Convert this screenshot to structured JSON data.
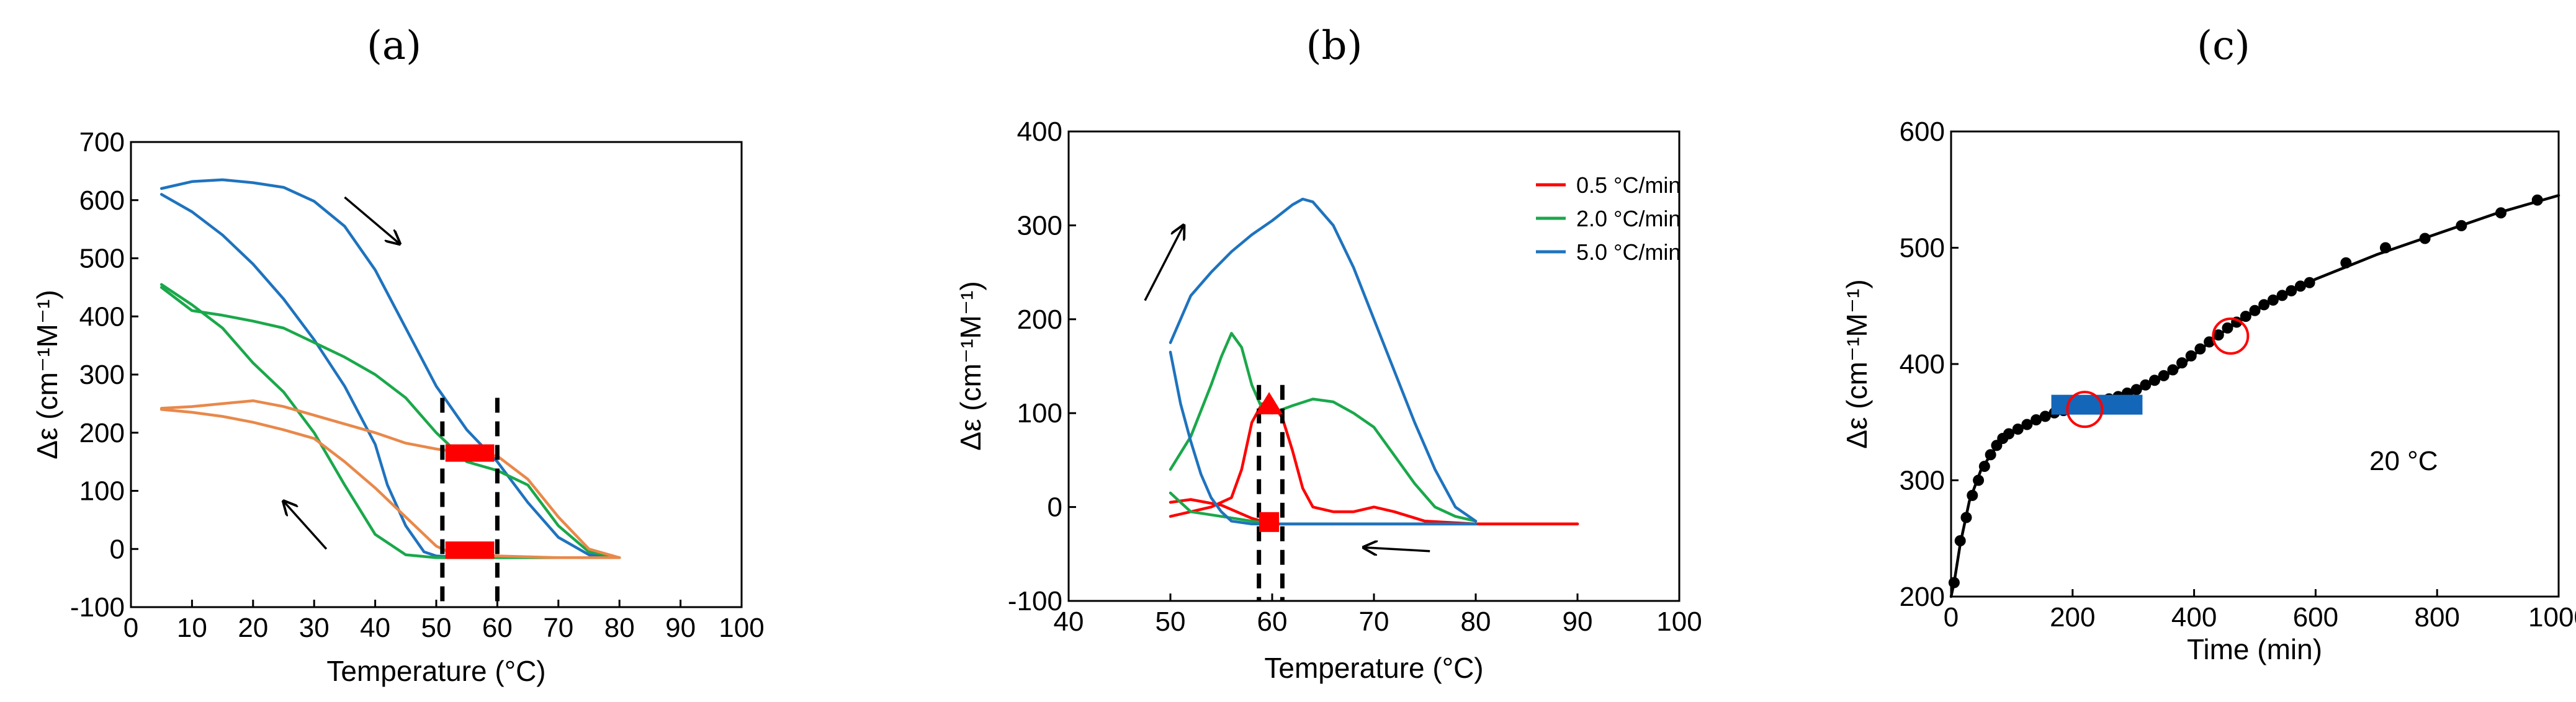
{
  "chart_data": [
    {
      "type": "line",
      "panel_label": "(a)",
      "xlabel": "Temperature (°C)",
      "ylabel": "Δε (cm⁻¹M⁻¹)",
      "xlim": [
        0,
        100
      ],
      "ylim": [
        -100,
        700
      ],
      "xticks": [
        0,
        10,
        20,
        30,
        40,
        50,
        60,
        70,
        80,
        90,
        100
      ],
      "yticks": [
        -100,
        0,
        100,
        200,
        300,
        400,
        500,
        600,
        700
      ],
      "colors": {
        "red": "#ff0000",
        "green": "#1aa84a",
        "blue": "#1e73be",
        "orange": "#e9884a"
      },
      "series": [
        {
          "name": "blue-heating",
          "color": "#1e73be",
          "x": [
            5,
            10,
            15,
            20,
            25,
            30,
            35,
            40,
            45,
            50,
            55,
            60,
            65,
            70,
            75,
            80
          ],
          "y": [
            620,
            632,
            635,
            630,
            622,
            598,
            555,
            480,
            380,
            280,
            205,
            150,
            80,
            20,
            -10,
            -15
          ]
        },
        {
          "name": "blue-cooling",
          "color": "#1e73be",
          "x": [
            5,
            10,
            15,
            20,
            25,
            30,
            35,
            40,
            42,
            45,
            48,
            50,
            55,
            60,
            70,
            80
          ],
          "y": [
            610,
            580,
            540,
            490,
            430,
            360,
            280,
            180,
            110,
            40,
            -5,
            -12,
            -15,
            -15,
            -15,
            -15
          ]
        },
        {
          "name": "green-heating",
          "color": "#1aa84a",
          "x": [
            5,
            10,
            15,
            20,
            25,
            30,
            35,
            40,
            45,
            50,
            55,
            60,
            65,
            70,
            75,
            80
          ],
          "y": [
            450,
            410,
            402,
            392,
            380,
            355,
            330,
            300,
            260,
            200,
            150,
            135,
            110,
            40,
            -5,
            -15
          ]
        },
        {
          "name": "green-cooling",
          "color": "#1aa84a",
          "x": [
            5,
            10,
            15,
            20,
            25,
            30,
            35,
            40,
            45,
            50,
            55,
            60,
            70,
            80
          ],
          "y": [
            455,
            420,
            380,
            320,
            270,
            200,
            110,
            25,
            -10,
            -15,
            -15,
            -15,
            -15,
            -15
          ]
        },
        {
          "name": "orange-heating",
          "color": "#e9884a",
          "x": [
            5,
            10,
            15,
            20,
            25,
            30,
            35,
            40,
            45,
            50,
            55,
            60,
            65,
            70,
            75,
            80
          ],
          "y": [
            242,
            245,
            250,
            255,
            245,
            230,
            215,
            200,
            182,
            172,
            165,
            160,
            120,
            55,
            0,
            -15
          ]
        },
        {
          "name": "orange-cooling",
          "color": "#e9884a",
          "x": [
            5,
            10,
            15,
            20,
            25,
            30,
            35,
            40,
            45,
            50,
            52,
            55,
            60,
            70,
            80
          ],
          "y": [
            240,
            235,
            228,
            218,
            205,
            190,
            150,
            105,
            55,
            5,
            -5,
            -10,
            -12,
            -15,
            -15
          ]
        }
      ],
      "vlines": [
        51,
        60
      ],
      "bars": [
        {
          "x0": 51.5,
          "x1": 59.5,
          "y": 165,
          "color": "#ff0000"
        },
        {
          "x0": 51.5,
          "x1": 59.5,
          "y": -2,
          "color": "#ff0000"
        }
      ],
      "arrows": [
        {
          "from": [
            35,
            605
          ],
          "to": [
            44,
            525
          ],
          "direction": "down-right"
        },
        {
          "from": [
            32,
            0
          ],
          "to": [
            25,
            82
          ],
          "direction": "up-left"
        }
      ]
    },
    {
      "type": "line",
      "panel_label": "(b)",
      "xlabel": "Temperature (°C)",
      "ylabel": "Δε (cm⁻¹M⁻¹)",
      "xlim": [
        40,
        100
      ],
      "ylim": [
        -100,
        400
      ],
      "xticks": [
        40,
        50,
        60,
        70,
        80,
        90,
        100
      ],
      "yticks": [
        -100,
        0,
        100,
        200,
        300,
        400
      ],
      "legend": [
        {
          "label": "0.5 °C/min",
          "color": "#ff0000"
        },
        {
          "label": "2.0 °C/min",
          "color": "#1aa84a"
        },
        {
          "label": "5.0 °C/min",
          "color": "#1e73be"
        }
      ],
      "series": [
        {
          "name": "0.5 °C/min heating",
          "color": "#ff0000",
          "x": [
            50,
            52,
            54,
            56,
            57,
            58,
            59,
            60,
            61,
            62,
            63,
            64,
            66,
            68,
            70,
            72,
            75,
            80,
            90
          ],
          "y": [
            -10,
            -5,
            0,
            10,
            40,
            90,
            110,
            110,
            95,
            60,
            20,
            0,
            -5,
            -5,
            0,
            -5,
            -15,
            -18,
            -18
          ]
        },
        {
          "name": "0.5 °C/min cooling",
          "color": "#ff0000",
          "x": [
            50,
            52,
            55,
            58,
            60,
            65,
            70,
            80,
            90
          ],
          "y": [
            5,
            8,
            2,
            -12,
            -18,
            -18,
            -18,
            -18,
            -18
          ]
        },
        {
          "name": "2.0 °C/min heating",
          "color": "#1aa84a",
          "x": [
            50,
            52,
            54,
            55,
            56,
            57,
            58,
            59,
            60,
            62,
            64,
            66,
            68,
            70,
            72,
            74,
            76,
            78,
            80
          ],
          "y": [
            40,
            75,
            130,
            160,
            185,
            170,
            130,
            105,
            100,
            108,
            115,
            112,
            100,
            85,
            55,
            25,
            0,
            -10,
            -15
          ]
        },
        {
          "name": "2.0 °C/min cooling",
          "color": "#1aa84a",
          "x": [
            50,
            52,
            55,
            58,
            60,
            70,
            80
          ],
          "y": [
            15,
            -5,
            -10,
            -15,
            -18,
            -18,
            -18
          ]
        },
        {
          "name": "5.0 °C/min heating",
          "color": "#1e73be",
          "x": [
            50,
            52,
            54,
            56,
            58,
            60,
            62,
            63,
            64,
            66,
            68,
            70,
            72,
            74,
            76,
            78,
            80
          ],
          "y": [
            175,
            225,
            250,
            272,
            290,
            305,
            322,
            328,
            325,
            300,
            255,
            200,
            145,
            90,
            40,
            0,
            -15
          ]
        },
        {
          "name": "5.0 °C/min cooling",
          "color": "#1e73be",
          "x": [
            50,
            51,
            52,
            53,
            54,
            55,
            56,
            58,
            60,
            70,
            80
          ],
          "y": [
            165,
            110,
            70,
            35,
            10,
            -5,
            -15,
            -18,
            -18,
            -18,
            -18
          ]
        }
      ],
      "vlines": [
        58.7,
        61
      ],
      "markers": [
        {
          "shape": "triangle",
          "x": 59.7,
          "y": 108,
          "color": "#ff0000"
        },
        {
          "shape": "square",
          "x": 59.7,
          "y": -16,
          "color": "#ff0000"
        }
      ],
      "arrows": [
        {
          "from": [
            47.5,
            220
          ],
          "to": [
            51.3,
            300
          ],
          "direction": "up-right"
        },
        {
          "from": [
            75.5,
            -47
          ],
          "to": [
            69,
            -43
          ],
          "direction": "left"
        }
      ]
    },
    {
      "type": "scatter",
      "panel_label": "(c)",
      "xlabel": "Time (min)",
      "ylabel": "Δε (cm⁻¹M⁻¹)",
      "xlim": [
        0,
        1000
      ],
      "ylim": [
        200,
        600
      ],
      "xticks": [
        0,
        200,
        400,
        600,
        800,
        1000
      ],
      "yticks": [
        200,
        300,
        400,
        500,
        600
      ],
      "annotation": "20 °C",
      "series": [
        {
          "name": "data",
          "color": "#000000",
          "x": [
            5,
            15,
            25,
            35,
            45,
            55,
            65,
            75,
            85,
            95,
            110,
            125,
            140,
            155,
            170,
            185,
            200,
            215,
            230,
            245,
            260,
            275,
            290,
            305,
            320,
            335,
            350,
            365,
            380,
            395,
            410,
            425,
            440,
            455,
            470,
            485,
            500,
            515,
            530,
            545,
            560,
            575,
            590,
            650,
            715,
            780,
            840,
            905,
            965
          ],
          "y": [
            212,
            248,
            268,
            287,
            300,
            312,
            322,
            330,
            336,
            340,
            344,
            348,
            352,
            355,
            358,
            360,
            362,
            364,
            366,
            368,
            370,
            372,
            375,
            378,
            382,
            386,
            390,
            395,
            401,
            407,
            413,
            419,
            425,
            431,
            436,
            441,
            446,
            451,
            455,
            459,
            463,
            467,
            470,
            487,
            500,
            508,
            519,
            530,
            541
          ]
        }
      ],
      "fit_curve": {
        "x": [
          0,
          5,
          15,
          30,
          50,
          80,
          120,
          170,
          230,
          300,
          370,
          440,
          520,
          600,
          700,
          800,
          900,
          1000
        ],
        "y": [
          200,
          212,
          245,
          282,
          310,
          333,
          347,
          358,
          365,
          375,
          395,
          425,
          452,
          473,
          494,
          512,
          530,
          545
        ]
      },
      "bar": {
        "x0": 165,
        "x1": 315,
        "y": 365,
        "color": "#1466b8"
      },
      "circles": [
        {
          "x": 220,
          "y": 361,
          "color": "#ff0000"
        },
        {
          "x": 460,
          "y": 424,
          "color": "#ff0000"
        }
      ]
    }
  ]
}
